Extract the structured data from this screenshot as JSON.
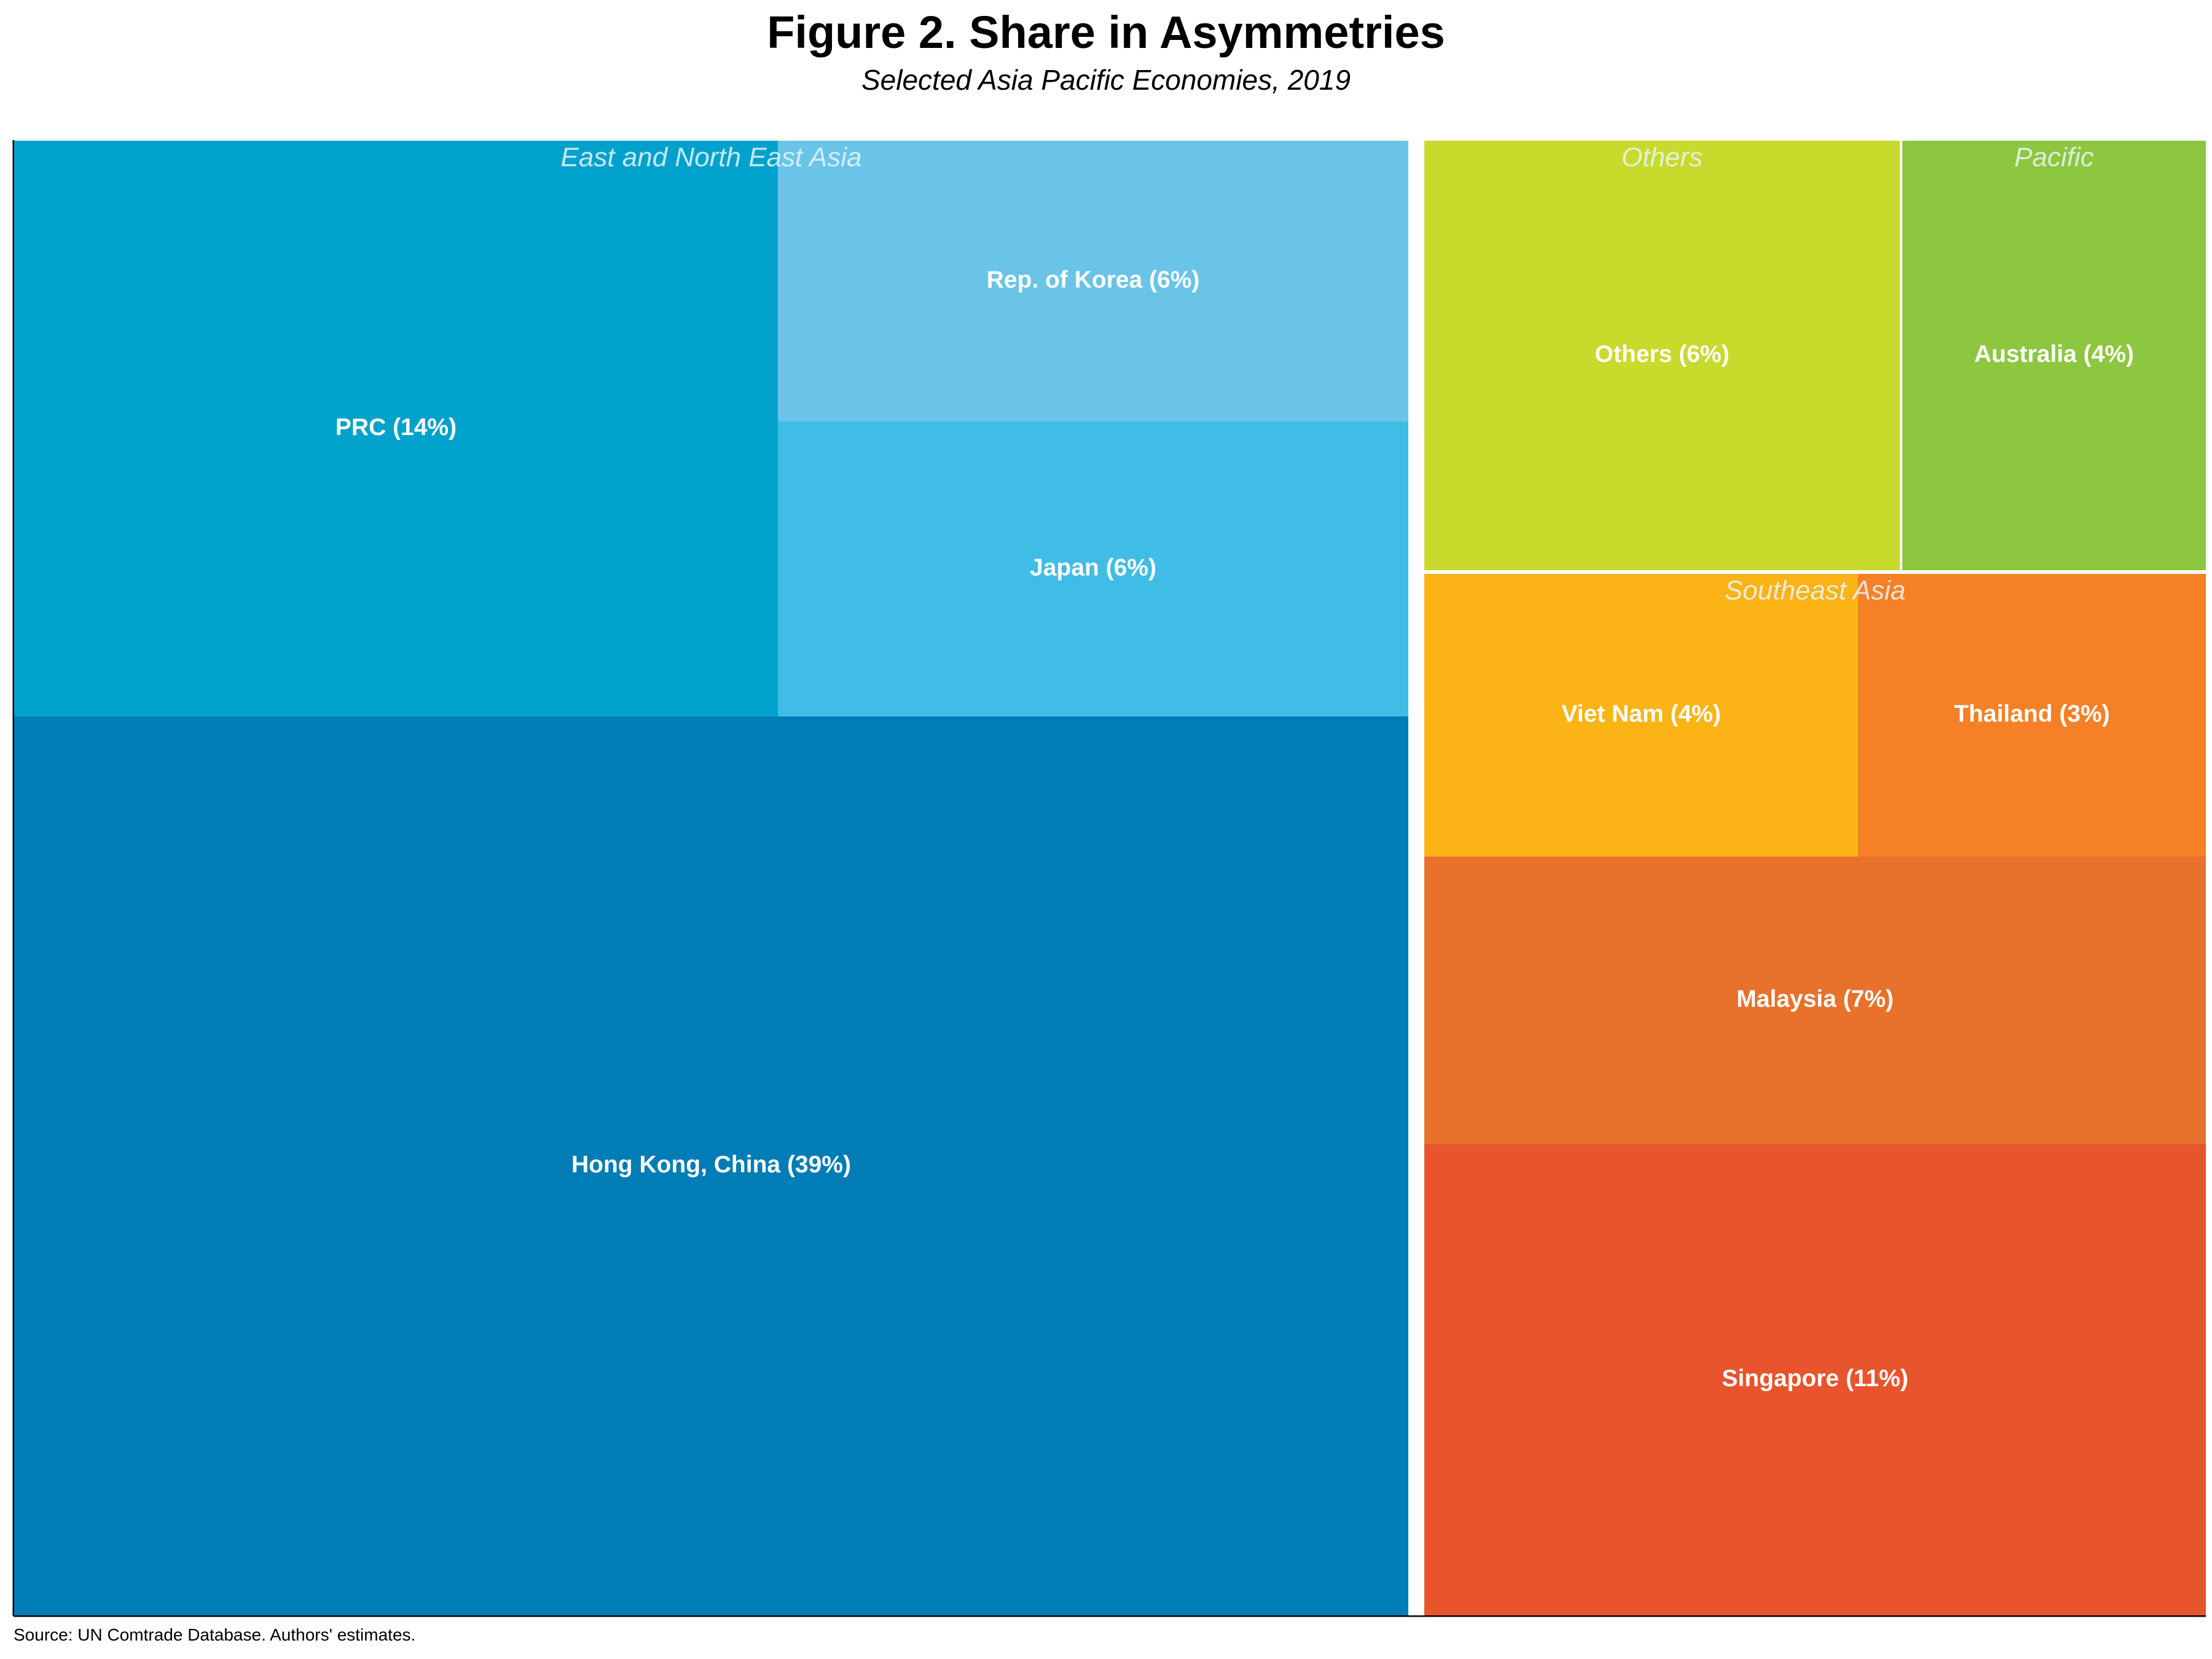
{
  "title": "Figure 2. Share in Asymmetries",
  "subtitle": "Selected Asia Pacific Economies, 2019",
  "source": "Source: UN Comtrade Database. Authors' estimates.",
  "chart_data": {
    "type": "treemap",
    "groups": [
      {
        "name": "East and North East Asia",
        "items": [
          {
            "label": "Hong Kong, China (39%)",
            "name": "Hong Kong, China",
            "value": 39,
            "color": "#007cb6"
          },
          {
            "label": "PRC (14%)",
            "name": "PRC",
            "value": 14,
            "color": "#00a2cb"
          },
          {
            "label": "Japan (6%)",
            "name": "Japan",
            "value": 6,
            "color": "#40bde7"
          },
          {
            "label": "Rep. of Korea (6%)",
            "name": "Rep. of Korea",
            "value": 6,
            "color": "#69c4e8"
          }
        ]
      },
      {
        "name": "Southeast Asia",
        "items": [
          {
            "label": "Singapore (11%)",
            "name": "Singapore",
            "value": 11,
            "color": "#e8542c"
          },
          {
            "label": "Malaysia (7%)",
            "name": "Malaysia",
            "value": 7,
            "color": "#e8712b"
          },
          {
            "label": "Viet Nam (4%)",
            "name": "Viet Nam",
            "value": 4,
            "color": "#fcb316"
          },
          {
            "label": "Thailand (3%)",
            "name": "Thailand",
            "value": 3,
            "color": "#f58026"
          }
        ]
      },
      {
        "name": "Others",
        "items": [
          {
            "label": "Others (6%)",
            "name": "Others",
            "value": 6,
            "color": "#c8da2b"
          }
        ]
      },
      {
        "name": "Pacific",
        "items": [
          {
            "label": "Australia (4%)",
            "name": "Australia",
            "value": 4,
            "color": "#8dc63f"
          }
        ]
      }
    ]
  }
}
